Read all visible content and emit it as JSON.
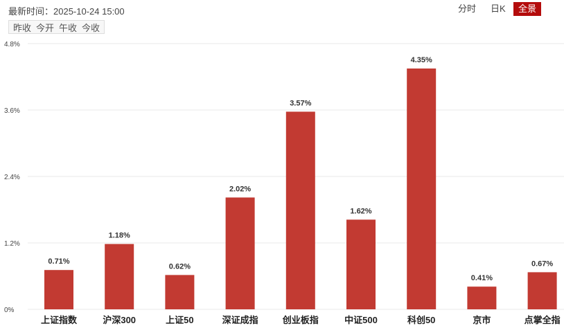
{
  "header": {
    "time_label": "最新时间：2025-10-24 15:00",
    "legend": [
      "昨收",
      "今开",
      "午收",
      "今收"
    ],
    "tabs": [
      {
        "label": "分时",
        "active": false
      },
      {
        "label": "日K",
        "active": false
      },
      {
        "label": "全景",
        "active": true
      }
    ]
  },
  "colors": {
    "bar": "#c23a32",
    "active_tab": "#b40c0c"
  },
  "chart_data": {
    "type": "bar",
    "title": "",
    "categories": [
      "上证指数",
      "沪深300",
      "上证50",
      "深证成指",
      "创业板指",
      "中证500",
      "科创50",
      "京市",
      "点掌全指"
    ],
    "values": [
      0.71,
      1.18,
      0.62,
      2.02,
      3.57,
      1.62,
      4.35,
      0.41,
      0.67
    ],
    "value_labels": [
      "0.71%",
      "1.18%",
      "0.62%",
      "2.02%",
      "3.57%",
      "1.62%",
      "4.35%",
      "0.41%",
      "0.67%"
    ],
    "yticks": [
      0,
      1.2,
      2.4,
      3.6,
      4.8
    ],
    "ytick_labels": [
      "0%",
      "1.2%",
      "2.4%",
      "3.6%",
      "4.8%"
    ],
    "ylim": [
      0,
      4.8
    ],
    "xlabel": "",
    "ylabel": "",
    "grid": true
  }
}
